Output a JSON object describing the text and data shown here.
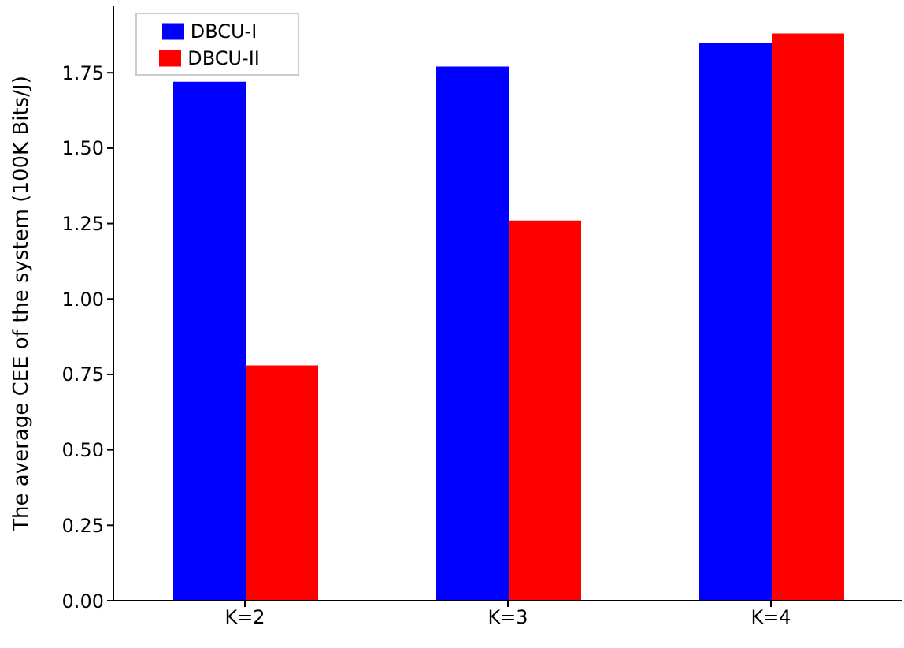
{
  "chart_data": {
    "type": "bar",
    "ylabel": "The average CEE of the system (100K Bits/J)",
    "categories": [
      "K=2",
      "K=3",
      "K=4"
    ],
    "series": [
      {
        "name": "DBCU-I",
        "color": "#0000ff",
        "values": [
          1.72,
          1.77,
          1.85
        ]
      },
      {
        "name": "DBCU-II",
        "color": "#ff0000",
        "values": [
          0.78,
          1.26,
          1.88
        ]
      }
    ],
    "ylim": [
      0,
      1.97
    ],
    "yticks": [
      {
        "value": 0,
        "label": "0.00"
      },
      {
        "value": 0.25,
        "label": "0.25"
      },
      {
        "value": 0.5,
        "label": "0.50"
      },
      {
        "value": 0.75,
        "label": "0.75"
      },
      {
        "value": 1,
        "label": "1.00"
      },
      {
        "value": 1.25,
        "label": "1.25"
      },
      {
        "value": 1.5,
        "label": "1.50"
      },
      {
        "value": 1.75,
        "label": "1.75"
      }
    ],
    "legend": "top left",
    "grid": false
  }
}
